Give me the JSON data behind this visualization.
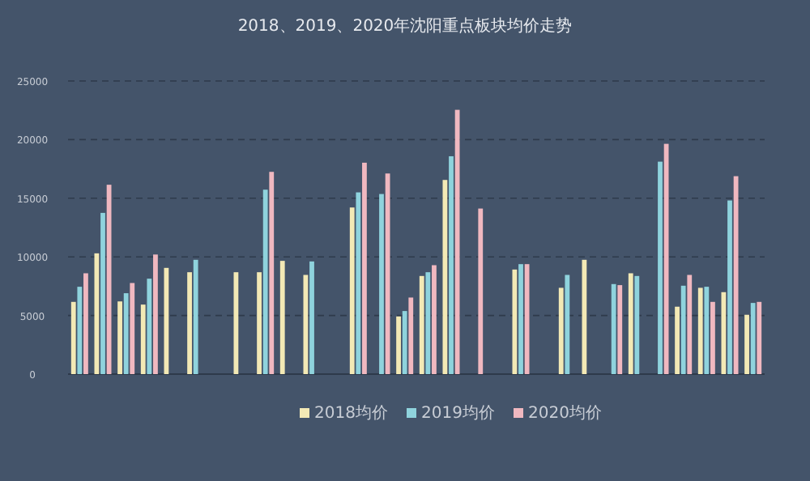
{
  "chart_data": {
    "type": "bar",
    "title": "2018、2019、2020年沈阳重点板块均价走势",
    "categories": [
      null,
      null,
      null,
      null,
      null,
      null,
      null,
      null,
      null,
      null,
      null,
      null,
      null,
      null,
      null,
      null,
      null,
      null,
      null,
      null,
      null,
      null,
      null,
      null,
      null,
      null,
      null,
      null,
      null,
      null
    ],
    "series": [
      {
        "name": "2018均价",
        "color": "#f3e9b5",
        "values": [
          6160,
          10300,
          6200,
          5930,
          9060,
          8690,
          null,
          8690,
          8690,
          9660,
          8460,
          null,
          14210,
          null,
          4920,
          8370,
          16560,
          null,
          null,
          8920,
          null,
          7360,
          9750,
          null,
          8600,
          null,
          5750,
          7360,
          6990,
          5060
        ]
      },
      {
        "name": "2019均价",
        "color": "#8fd3dd",
        "values": [
          7450,
          13750,
          6900,
          8140,
          null,
          9750,
          null,
          null,
          15730,
          null,
          9610,
          null,
          15500,
          15360,
          5380,
          8690,
          18580,
          null,
          null,
          9380,
          null,
          8460,
          null,
          7680,
          8370,
          18120,
          7540,
          7450,
          14810,
          6070
        ]
      },
      {
        "name": "2020均价",
        "color": "#f0b8c0",
        "values": [
          8600,
          16150,
          7770,
          10200,
          null,
          null,
          null,
          null,
          17250,
          null,
          null,
          null,
          18030,
          17110,
          6530,
          9290,
          22540,
          14120,
          null,
          9380,
          null,
          null,
          null,
          7590,
          null,
          19640,
          8460,
          6160,
          16880,
          6160
        ]
      }
    ],
    "ylim": [
      0,
      25000
    ],
    "yticks": [
      0,
      5000,
      10000,
      15000,
      20000,
      25000
    ],
    "grid": "y",
    "legend": "bottom"
  }
}
